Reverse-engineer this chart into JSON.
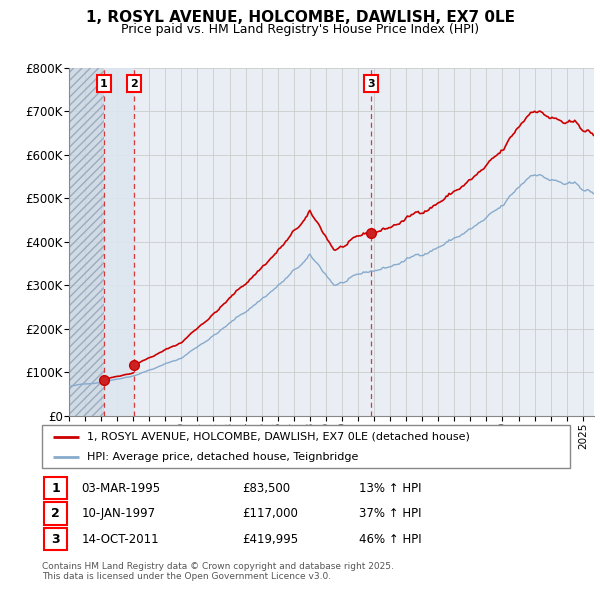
{
  "title": "1, ROSYL AVENUE, HOLCOMBE, DAWLISH, EX7 0LE",
  "subtitle": "Price paid vs. HM Land Registry's House Price Index (HPI)",
  "ylim": [
    0,
    800000
  ],
  "yticks": [
    0,
    100000,
    200000,
    300000,
    400000,
    500000,
    600000,
    700000,
    800000
  ],
  "ytick_labels": [
    "£0",
    "£100K",
    "£200K",
    "£300K",
    "£400K",
    "£500K",
    "£600K",
    "£700K",
    "£800K"
  ],
  "xlim": [
    1993.0,
    2025.7
  ],
  "sale_dates_num": [
    1995.17,
    1997.03,
    2011.79
  ],
  "sale_prices": [
    83500,
    117000,
    419995
  ],
  "sale_labels": [
    "1",
    "2",
    "3"
  ],
  "property_line_color": "#cc0000",
  "hpi_line_color": "#88aacc",
  "vline_color": "#cc0000",
  "grid_color": "#cccccc",
  "bg_color": "#e8eef4",
  "hatch_region_color": "#d0d8e4",
  "blue_span_color": "#dde6f0",
  "legend_property": "1, ROSYL AVENUE, HOLCOMBE, DAWLISH, EX7 0LE (detached house)",
  "legend_hpi": "HPI: Average price, detached house, Teignbridge",
  "transactions": [
    {
      "num": "1",
      "date": "03-MAR-1995",
      "price": "£83,500",
      "change": "13% ↑ HPI"
    },
    {
      "num": "2",
      "date": "10-JAN-1997",
      "price": "£117,000",
      "change": "37% ↑ HPI"
    },
    {
      "num": "3",
      "date": "14-OCT-2011",
      "price": "£419,995",
      "change": "46% ↑ HPI"
    }
  ],
  "footer_line1": "Contains HM Land Registry data © Crown copyright and database right 2025.",
  "footer_line2": "This data is licensed under the Open Government Licence v3.0."
}
